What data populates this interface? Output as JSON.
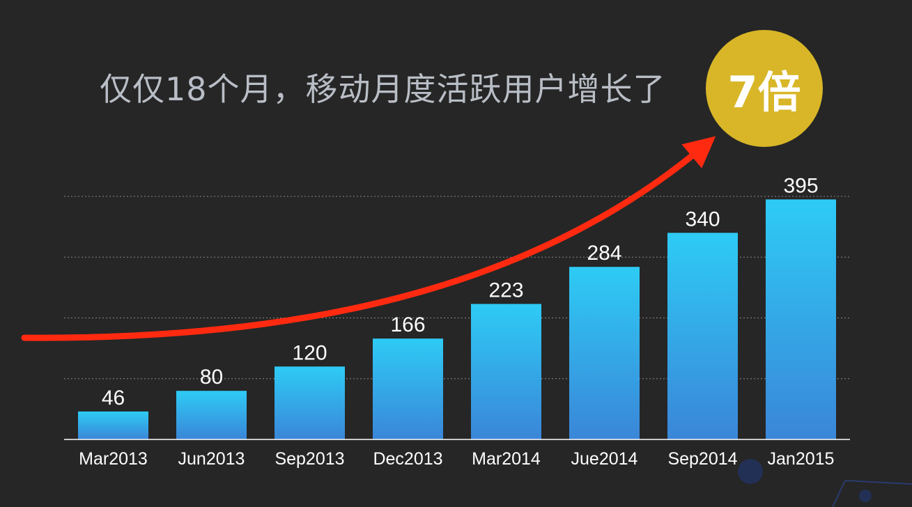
{
  "headline": {
    "text": "仅仅18个月，移动月度活跃用户增长了",
    "badge_text": "7倍",
    "badge_color": "#d8b627"
  },
  "chart_data": {
    "type": "bar",
    "categories": [
      "Mar2013",
      "Jun2013",
      "Sep2013",
      "Dec2013",
      "Mar2014",
      "Jue2014",
      "Sep2014",
      "Jan2015"
    ],
    "values": [
      46,
      80,
      120,
      166,
      223,
      284,
      340,
      395
    ],
    "data_labels": [
      "46",
      "80",
      "120",
      "166",
      "223",
      "284",
      "340",
      "395"
    ],
    "ylim": [
      0,
      400
    ],
    "grid": true,
    "bar_color_top": "#2ecbf5",
    "bar_color_bottom": "#3a86d8",
    "trend_arrow_color": "#ff2a10"
  }
}
